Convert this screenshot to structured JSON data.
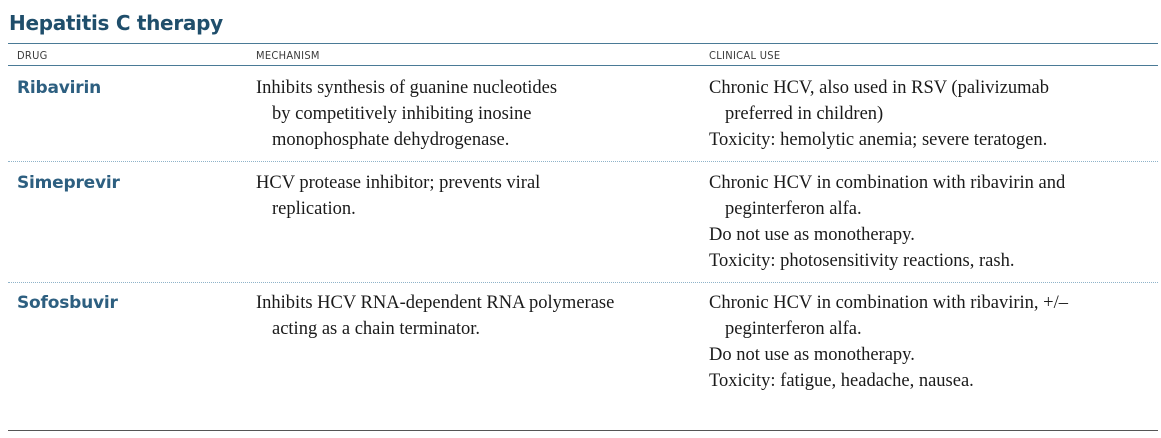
{
  "title": "Hepatitis C therapy",
  "columns": {
    "drug": "DRUG",
    "mechanism": "MECHANISM",
    "clinical_use": "CLINICAL USE"
  },
  "rows": [
    {
      "drug": "Ribavirin",
      "mechanism": [
        "Inhibits synthesis of guanine nucleotides",
        "by competitively inhibiting inosine",
        "monophosphate dehydrogenase."
      ],
      "clinical_use": [
        "Chronic HCV, also used in RSV (palivizumab",
        "preferred in children)",
        "Toxicity: hemolytic anemia; severe teratogen."
      ]
    },
    {
      "drug": "Simeprevir",
      "mechanism": [
        "HCV protease inhibitor; prevents viral",
        "replication."
      ],
      "clinical_use": [
        "Chronic HCV in combination with ribavirin and",
        "peginterferon alfa.",
        "Do not use as monotherapy.",
        "Toxicity: photosensitivity reactions, rash."
      ]
    },
    {
      "drug": "Sofosbuvir",
      "mechanism": [
        "Inhibits HCV RNA-dependent RNA polymerase",
        "acting as a chain terminator."
      ],
      "clinical_use": [
        "Chronic HCV in combination with ribavirin, +/–",
        "peginterferon alfa.",
        "Do not use as monotherapy.",
        "Toxicity: fatigue, headache, nausea."
      ]
    }
  ]
}
